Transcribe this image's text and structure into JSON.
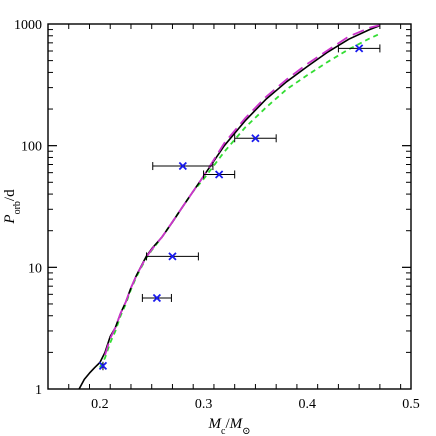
{
  "chart_data": {
    "type": "scatter",
    "xlabel": "M_c/M_⊙",
    "ylabel": "P_orb/d",
    "xlim": [
      0.15,
      0.5
    ],
    "ylim": [
      1,
      1000
    ],
    "yscale": "log",
    "grid": false,
    "x_ticks": [
      "0.2",
      "0.3",
      "0.4",
      "0.5"
    ],
    "y_ticks": [
      "1",
      "10",
      "100",
      "1000"
    ],
    "colors": {
      "solid_curve": "#000000",
      "long_dash_curve": "#cc33cc",
      "short_dash_curve": "#33dd33",
      "points": "#1a1aee",
      "error_bars": "#000000"
    },
    "series": [
      {
        "style": "solid",
        "x": [
          0.18,
          0.185,
          0.19,
          0.195,
          0.2,
          0.205,
          0.21,
          0.215,
          0.22,
          0.225,
          0.23,
          0.235,
          0.24,
          0.245,
          0.25,
          0.26,
          0.27,
          0.28,
          0.29,
          0.3,
          0.32,
          0.34,
          0.36,
          0.38,
          0.4,
          0.42,
          0.44,
          0.46,
          0.47
        ],
        "y": [
          1.0,
          1.2,
          1.35,
          1.5,
          1.65,
          2.0,
          2.7,
          3.2,
          4.2,
          5.2,
          6.8,
          8.5,
          10.3,
          12.4,
          14.2,
          17.8,
          23.6,
          31.6,
          42.2,
          56.2,
          100,
          160,
          240,
          335,
          447,
          590,
          750,
          900,
          970
        ]
      },
      {
        "style": "long-dash",
        "x": [
          0.205,
          0.21,
          0.215,
          0.22,
          0.225,
          0.23,
          0.235,
          0.24,
          0.245,
          0.25,
          0.26,
          0.27,
          0.28,
          0.29,
          0.3,
          0.32,
          0.34,
          0.36,
          0.38,
          0.4,
          0.42,
          0.44,
          0.46,
          0.47
        ],
        "y": [
          1.9,
          2.6,
          3.2,
          4.2,
          5.2,
          6.8,
          8.5,
          10.2,
          12.2,
          14.0,
          17.8,
          23.7,
          31.6,
          42.2,
          56.2,
          105,
          168,
          251,
          350,
          470,
          610,
          790,
          930,
          980
        ]
      },
      {
        "style": "short-dash",
        "x": [
          0.2,
          0.205,
          0.21,
          0.215,
          0.22,
          0.225,
          0.23,
          0.235,
          0.24,
          0.245,
          0.25,
          0.26,
          0.27,
          0.28,
          0.29,
          0.3,
          0.32,
          0.34,
          0.36,
          0.38,
          0.4,
          0.42,
          0.44,
          0.46,
          0.47
        ],
        "y": [
          1.5,
          1.8,
          2.4,
          3.0,
          4.0,
          5.0,
          6.6,
          8.3,
          10.0,
          12.0,
          13.8,
          17.8,
          23.7,
          31.6,
          42.2,
          53.1,
          89,
          141,
          205,
          290,
          380,
          490,
          620,
          760,
          830
        ]
      }
    ],
    "points": [
      {
        "x": 0.203,
        "y": 1.55,
        "xerr": 0.0,
        "yerr_pct": 0.08
      },
      {
        "x": 0.255,
        "y": 5.6,
        "xerr": 0.014
      },
      {
        "x": 0.27,
        "y": 12.3,
        "xerr": 0.025
      },
      {
        "x": 0.28,
        "y": 68,
        "xerr": 0.029
      },
      {
        "x": 0.315,
        "y": 58,
        "xerr": 0.015
      },
      {
        "x": 0.35,
        "y": 115,
        "xerr": 0.02
      },
      {
        "x": 0.45,
        "y": 630,
        "xerr": 0.02
      }
    ]
  }
}
